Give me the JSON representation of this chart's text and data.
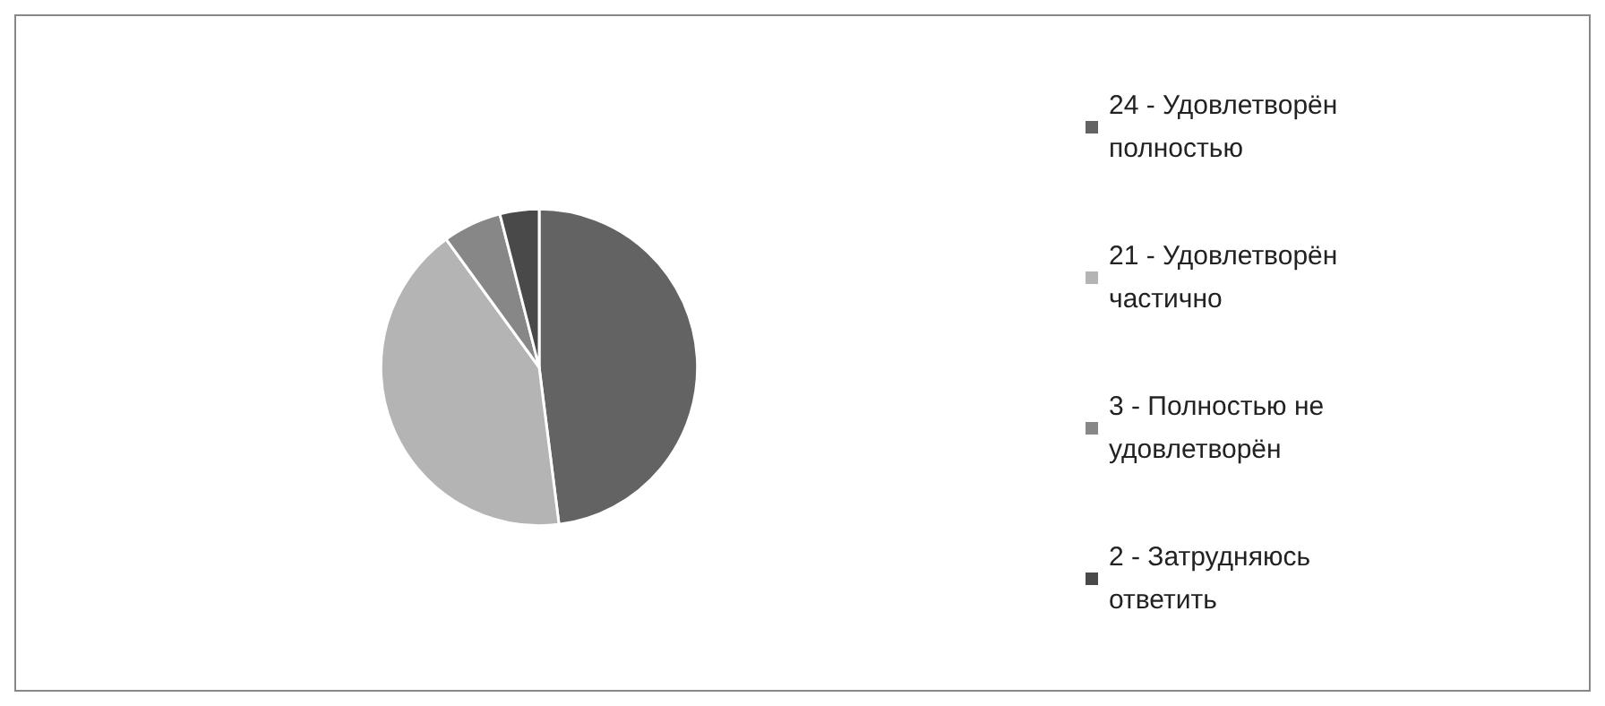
{
  "chart_data": {
    "type": "pie",
    "categories": [
      "24 - Удовлетворён полностью",
      "21 - Удовлетворён частично",
      "3 - Полностью не удовлетворён",
      "2 - Затрудняюсь ответить"
    ],
    "values": [
      24,
      21,
      3,
      2
    ],
    "colors": [
      "#636363",
      "#b4b4b4",
      "#878787",
      "#494949"
    ],
    "legend": "right"
  }
}
